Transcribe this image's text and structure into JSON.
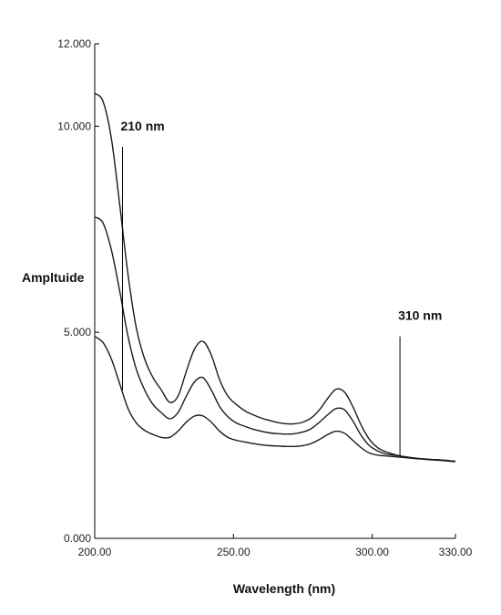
{
  "chart_data": {
    "type": "line",
    "title": "",
    "xlabel": "Wavelength (nm)",
    "ylabel": "Ampltuide",
    "xlim": [
      200,
      330
    ],
    "ylim": [
      0,
      12
    ],
    "x_ticks": [
      200,
      250,
      300,
      330
    ],
    "x_tick_labels": [
      "200.00",
      "250.00",
      "300.00",
      "330.00"
    ],
    "y_ticks": [
      0,
      5,
      10,
      12
    ],
    "y_tick_labels": [
      "0.000",
      "5.000",
      "10.000",
      "12.000"
    ],
    "grid": false,
    "legend": "none",
    "series": [
      {
        "x": [
          200,
          203,
          206,
          209,
          212,
          215,
          218,
          221,
          224,
          227,
          230,
          233,
          236,
          239,
          242,
          245,
          248,
          251,
          254,
          257,
          260,
          263,
          266,
          269,
          272,
          275,
          278,
          281,
          284,
          287,
          290,
          293,
          296,
          299,
          302,
          305,
          310,
          315,
          320,
          325,
          330
        ],
        "y": [
          10.8,
          10.6,
          9.7,
          8.1,
          6.4,
          5.1,
          4.35,
          3.9,
          3.6,
          3.3,
          3.45,
          4.05,
          4.6,
          4.78,
          4.45,
          3.85,
          3.45,
          3.25,
          3.1,
          3.0,
          2.92,
          2.86,
          2.81,
          2.78,
          2.78,
          2.82,
          2.92,
          3.12,
          3.4,
          3.62,
          3.55,
          3.2,
          2.75,
          2.4,
          2.2,
          2.1,
          2.0,
          1.95,
          1.92,
          1.9,
          1.87
        ]
      },
      {
        "x": [
          200,
          203,
          206,
          209,
          212,
          215,
          218,
          221,
          224,
          227,
          230,
          233,
          236,
          239,
          242,
          245,
          248,
          251,
          254,
          257,
          260,
          263,
          266,
          269,
          272,
          275,
          278,
          281,
          284,
          287,
          290,
          293,
          296,
          299,
          302,
          305,
          310,
          315,
          320,
          325,
          330
        ],
        "y": [
          7.8,
          7.65,
          7.0,
          6.0,
          4.9,
          4.1,
          3.6,
          3.25,
          3.05,
          2.9,
          3.05,
          3.45,
          3.8,
          3.9,
          3.6,
          3.2,
          2.95,
          2.8,
          2.72,
          2.65,
          2.6,
          2.56,
          2.54,
          2.53,
          2.54,
          2.58,
          2.66,
          2.82,
          3.0,
          3.15,
          3.12,
          2.85,
          2.5,
          2.25,
          2.12,
          2.05,
          2.0,
          1.95,
          1.92,
          1.9,
          1.87
        ]
      },
      {
        "x": [
          200,
          203,
          206,
          209,
          212,
          215,
          218,
          221,
          224,
          227,
          230,
          233,
          236,
          239,
          242,
          245,
          248,
          251,
          254,
          257,
          260,
          263,
          266,
          269,
          272,
          275,
          278,
          281,
          284,
          287,
          290,
          293,
          296,
          299,
          302,
          305,
          310,
          315,
          320,
          325,
          330
        ],
        "y": [
          4.9,
          4.75,
          4.35,
          3.75,
          3.15,
          2.8,
          2.62,
          2.52,
          2.45,
          2.45,
          2.6,
          2.82,
          2.97,
          2.97,
          2.82,
          2.6,
          2.45,
          2.38,
          2.34,
          2.3,
          2.27,
          2.25,
          2.24,
          2.23,
          2.23,
          2.25,
          2.3,
          2.4,
          2.52,
          2.6,
          2.55,
          2.38,
          2.2,
          2.07,
          2.02,
          2.0,
          1.97,
          1.94,
          1.91,
          1.89,
          1.86
        ]
      }
    ],
    "annotations": [
      {
        "label": "210 nm",
        "x": 210,
        "y_bottom": 3.6,
        "y_top": 9.5
      },
      {
        "label": "310 nm",
        "x": 310,
        "y_bottom": 2.0,
        "y_top": 4.9
      }
    ]
  }
}
